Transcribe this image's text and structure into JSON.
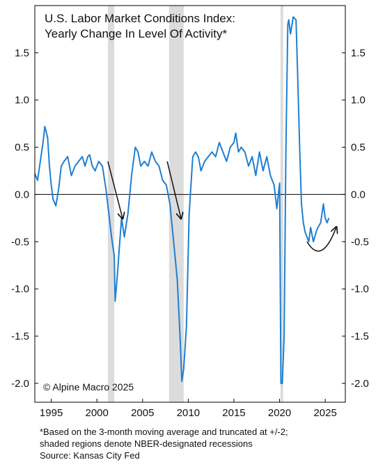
{
  "chart_data": {
    "type": "line",
    "title": "U.S. Labor Market Conditions Index:",
    "subtitle": "Yearly Change In Level Of Activity*",
    "copyright": "© Alpine Macro 2025",
    "xlim": [
      1993.2,
      2027.2
    ],
    "ylim": [
      -2.2,
      2.0
    ],
    "x_ticks": [
      1995,
      2000,
      2005,
      2010,
      2015,
      2020,
      2025
    ],
    "x_tick_labels": [
      "1995",
      "2000",
      "2005",
      "2010",
      "2015",
      "2020",
      "2025"
    ],
    "y_ticks": [
      1.5,
      1.0,
      0.5,
      0.0,
      -0.5,
      -1.0,
      -1.5,
      -2.0
    ],
    "y_tick_labels": [
      "1.5",
      "1.0",
      "0.5",
      "0.0",
      "-0.5",
      "-1.0",
      "-1.5",
      "-2.0"
    ],
    "grid": false,
    "line_color": "#1f7fd0",
    "recession_color": "#dcdcdc",
    "recessions": [
      [
        2001.2,
        2001.9
      ],
      [
        2007.9,
        2009.5
      ],
      [
        2020.1,
        2020.4
      ]
    ],
    "zero_line": true,
    "series": [
      {
        "x": [
          1993.2,
          1993.5,
          1993.8,
          1994.1,
          1994.3,
          1994.6,
          1994.8,
          1995.0,
          1995.2,
          1995.5,
          1995.8,
          1996.1,
          1996.4,
          1996.8,
          1997.2,
          1997.6,
          1998.0,
          1998.4,
          1998.7,
          1999.0,
          1999.2,
          1999.5,
          1999.8,
          2000.2,
          2000.6,
          2001.0,
          2001.3,
          2001.6,
          2001.9,
          2002.0,
          2002.2,
          2002.5,
          2002.7,
          2003.0,
          2003.4,
          2003.8,
          2004.2,
          2004.5,
          2004.8,
          2005.2,
          2005.6,
          2006.0,
          2006.4,
          2006.8,
          2007.2,
          2007.6,
          2008.0,
          2008.4,
          2008.8,
          2009.1,
          2009.3,
          2009.5,
          2009.8,
          2010.1,
          2010.5,
          2010.8,
          2011.1,
          2011.4,
          2011.8,
          2012.2,
          2012.6,
          2013.0,
          2013.4,
          2013.8,
          2014.2,
          2014.6,
          2015.0,
          2015.2,
          2015.5,
          2015.8,
          2016.2,
          2016.6,
          2017.0,
          2017.4,
          2017.8,
          2018.2,
          2018.6,
          2019.0,
          2019.4,
          2019.7,
          2020.0,
          2020.15,
          2020.3,
          2020.5,
          2020.7,
          2020.9,
          2021.0,
          2021.2,
          2021.5,
          2021.8,
          2022.0,
          2022.2,
          2022.4,
          2022.6,
          2022.8,
          2023.0,
          2023.2,
          2023.4,
          2023.7,
          2024.0,
          2024.2,
          2024.5,
          2024.8,
          2025.0,
          2025.2,
          2025.4
        ],
        "values": [
          0.22,
          0.15,
          0.35,
          0.55,
          0.72,
          0.6,
          0.3,
          0.1,
          -0.05,
          -0.12,
          0.05,
          0.3,
          0.35,
          0.4,
          0.2,
          0.3,
          0.35,
          0.4,
          0.3,
          0.4,
          0.42,
          0.3,
          0.25,
          0.35,
          0.3,
          0.05,
          -0.2,
          -0.45,
          -0.65,
          -1.13,
          -0.9,
          -0.5,
          -0.25,
          -0.45,
          -0.2,
          0.2,
          0.5,
          0.45,
          0.3,
          0.35,
          0.3,
          0.45,
          0.35,
          0.3,
          0.15,
          0.1,
          -0.1,
          -0.5,
          -0.9,
          -1.5,
          -1.98,
          -1.85,
          -1.4,
          -0.2,
          0.4,
          0.45,
          0.4,
          0.25,
          0.35,
          0.4,
          0.45,
          0.4,
          0.55,
          0.45,
          0.35,
          0.5,
          0.55,
          0.65,
          0.45,
          0.5,
          0.45,
          0.3,
          0.4,
          0.2,
          0.45,
          0.25,
          0.4,
          0.2,
          0.1,
          -0.15,
          0.12,
          -2.0,
          -2.0,
          -1.5,
          0.5,
          1.8,
          1.85,
          1.7,
          1.88,
          1.85,
          1.2,
          0.5,
          -0.1,
          -0.3,
          -0.4,
          -0.45,
          -0.5,
          -0.35,
          -0.5,
          -0.4,
          -0.35,
          -0.3,
          -0.1,
          -0.25,
          -0.3,
          -0.25
        ]
      }
    ],
    "annotations": [
      {
        "type": "arrow",
        "from": [
          2001.2,
          0.35
        ],
        "to": [
          2002.8,
          -0.25
        ]
      },
      {
        "type": "arrow",
        "from": [
          2007.7,
          0.35
        ],
        "to": [
          2009.2,
          -0.25
        ]
      },
      {
        "type": "curved-arrow",
        "from": [
          2023.0,
          -0.5
        ],
        "to": [
          2026.2,
          -0.35
        ]
      }
    ]
  },
  "footnote": {
    "line1": "*Based on the 3-month moving average and truncated at +/-2;",
    "line2": "shaded regions denote NBER-designated recessions",
    "source": "Source: Kansas City Fed"
  }
}
